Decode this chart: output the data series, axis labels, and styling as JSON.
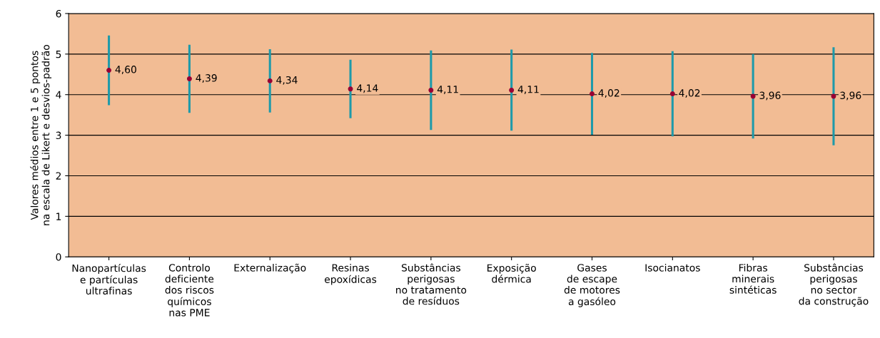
{
  "chart_data": {
    "type": "scatter",
    "ylabel": "Valores médios entre 1 e 5 pontos\nna escala de Likert e desvios-padrão",
    "categories": [
      "Nanopartículas\ne partículas\nultrafinas",
      "Controlo\ndeficiente\ndos riscos\nquímicos\nnas PME",
      "Externalização",
      "Resinas\nepoxídicas",
      "Substâncias\nperigosas\nno tratamento\nde resíduos",
      "Exposição\ndérmica",
      "Gases\nde escape\nde motores\na gasóleo",
      "Isocianatos",
      "Fibras\nminerais\nsintéticas",
      "Substâncias\nperigosas\nno sector\nda construção"
    ],
    "series": [
      {
        "color": "#990033",
        "values": [
          4.6,
          4.39,
          4.34,
          4.14,
          4.11,
          4.11,
          4.02,
          4.02,
          3.96,
          3.96
        ],
        "errors": [
          0.86,
          0.84,
          0.78,
          0.72,
          0.98,
          1.0,
          1.01,
          1.05,
          1.04,
          1.21
        ],
        "value_labels": [
          "4,60",
          "4,39",
          "4,34",
          "4,14",
          "4,11",
          "4,11",
          "4,02",
          "4,02",
          "3,96",
          "3,96"
        ]
      }
    ],
    "ylim": [
      0,
      6
    ],
    "yticks": [
      0,
      1,
      2,
      3,
      4,
      5,
      6
    ],
    "grid": "y",
    "marker": "circle",
    "legend": false
  }
}
